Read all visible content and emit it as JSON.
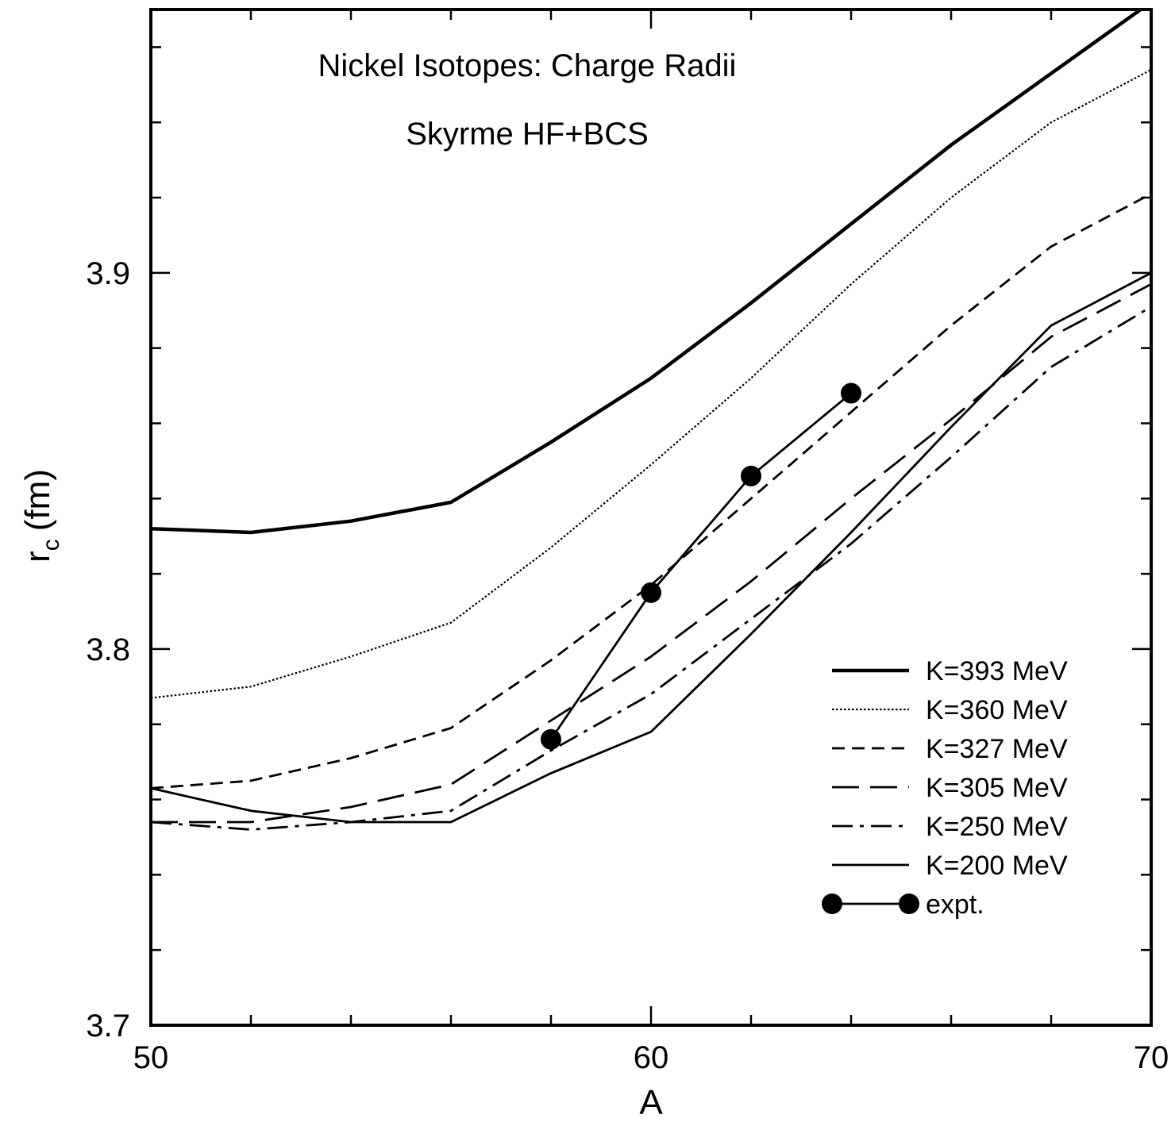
{
  "chart_data": {
    "type": "line",
    "title": "",
    "annotations": [
      "Nickel Isotopes: Charge Radii",
      "Skyrme HF+BCS"
    ],
    "xlabel": "A",
    "ylabel": {
      "main": "r",
      "sub": "c",
      "unit": "(fm)"
    },
    "xlim": [
      50,
      70
    ],
    "ylim": [
      3.7,
      3.97
    ],
    "x_ticks": [
      50,
      60,
      70
    ],
    "x_tick_labels": [
      "50",
      "60",
      "70"
    ],
    "x_minor_step": 2,
    "y_ticks": [
      3.7,
      3.8,
      3.9
    ],
    "y_tick_labels": [
      "3.7",
      "3.8",
      "3.9"
    ],
    "y_minor_step": 0.02,
    "grid": false,
    "legend_position": "bottom-right",
    "series": [
      {
        "name": "K=393 MeV",
        "style": "thick-solid",
        "x": [
          50,
          52,
          54,
          56,
          58,
          60,
          62,
          64,
          66,
          68,
          70
        ],
        "y": [
          3.832,
          3.831,
          3.834,
          3.839,
          3.855,
          3.872,
          3.892,
          3.913,
          3.934,
          3.953,
          3.972
        ]
      },
      {
        "name": "K=360 MeV",
        "style": "dotted",
        "x": [
          50,
          52,
          54,
          56,
          58,
          60,
          62,
          64,
          66,
          68,
          70
        ],
        "y": [
          3.787,
          3.79,
          3.798,
          3.807,
          3.827,
          3.849,
          3.872,
          3.897,
          3.92,
          3.94,
          3.954
        ]
      },
      {
        "name": "K=327 MeV",
        "style": "short-dash",
        "x": [
          50,
          52,
          54,
          56,
          58,
          60,
          62,
          64,
          66,
          68,
          70
        ],
        "y": [
          3.763,
          3.765,
          3.771,
          3.779,
          3.797,
          3.817,
          3.84,
          3.863,
          3.886,
          3.907,
          3.921
        ]
      },
      {
        "name": "K=305 MeV",
        "style": "long-dash",
        "x": [
          50,
          52,
          54,
          56,
          58,
          60,
          62,
          64,
          66,
          68,
          70
        ],
        "y": [
          3.754,
          3.754,
          3.758,
          3.764,
          3.781,
          3.798,
          3.818,
          3.84,
          3.861,
          3.883,
          3.897
        ]
      },
      {
        "name": "K=250 MeV",
        "style": "dash-dot",
        "x": [
          50,
          52,
          54,
          56,
          58,
          60,
          62,
          64,
          66,
          68,
          70
        ],
        "y": [
          3.754,
          3.752,
          3.754,
          3.757,
          3.773,
          3.788,
          3.808,
          3.828,
          3.851,
          3.875,
          3.891
        ]
      },
      {
        "name": "K=200 MeV",
        "style": "thin-solid",
        "x": [
          50,
          52,
          54,
          56,
          58,
          60,
          62,
          64,
          66,
          68,
          70
        ],
        "y": [
          3.763,
          3.757,
          3.754,
          3.754,
          3.767,
          3.778,
          3.804,
          3.831,
          3.859,
          3.886,
          3.9
        ]
      },
      {
        "name": "expt.",
        "style": "markers-line",
        "x": [
          58,
          60,
          62,
          64
        ],
        "y": [
          3.776,
          3.815,
          3.846,
          3.868
        ]
      }
    ]
  }
}
